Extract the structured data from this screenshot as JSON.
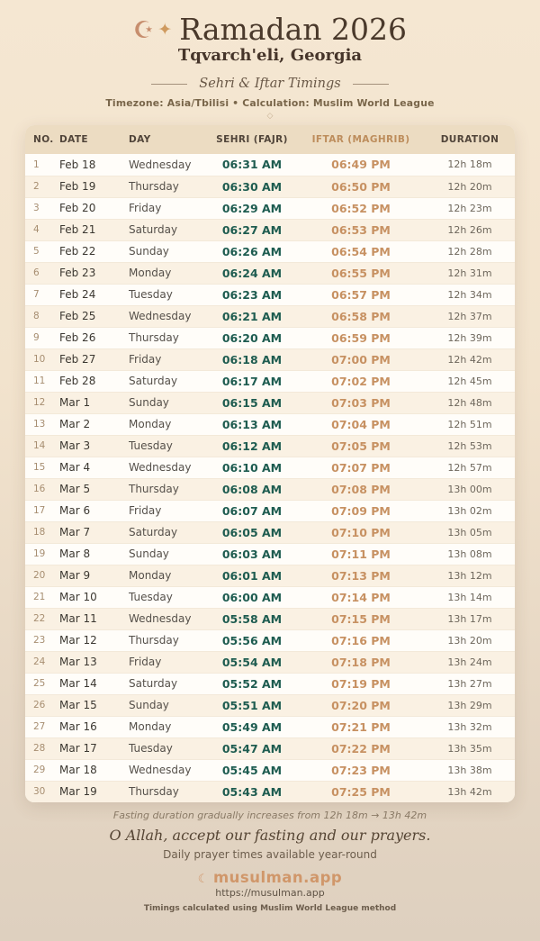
{
  "header": {
    "moon_icon": "☪",
    "sparkle_icon": "✦",
    "title": "Ramadan 2026",
    "location": "Tqvarch'eli, Georgia",
    "subtitle": "Sehri & Iftar Timings",
    "meta": "Timezone: Asia/Tbilisi • Calculation: Muslim World League",
    "divider_icon": "◇"
  },
  "table": {
    "columns": [
      "NO.",
      "DATE",
      "DAY",
      "SEHRI (FAJR)",
      "IFTAR (MAGHRIB)",
      "DURATION"
    ],
    "rows": [
      {
        "no": "1",
        "date": "Feb 18",
        "day": "Wednesday",
        "sehri": "06:31 AM",
        "iftar": "06:49 PM",
        "duration": "12h 18m"
      },
      {
        "no": "2",
        "date": "Feb 19",
        "day": "Thursday",
        "sehri": "06:30 AM",
        "iftar": "06:50 PM",
        "duration": "12h 20m"
      },
      {
        "no": "3",
        "date": "Feb 20",
        "day": "Friday",
        "sehri": "06:29 AM",
        "iftar": "06:52 PM",
        "duration": "12h 23m"
      },
      {
        "no": "4",
        "date": "Feb 21",
        "day": "Saturday",
        "sehri": "06:27 AM",
        "iftar": "06:53 PM",
        "duration": "12h 26m"
      },
      {
        "no": "5",
        "date": "Feb 22",
        "day": "Sunday",
        "sehri": "06:26 AM",
        "iftar": "06:54 PM",
        "duration": "12h 28m"
      },
      {
        "no": "6",
        "date": "Feb 23",
        "day": "Monday",
        "sehri": "06:24 AM",
        "iftar": "06:55 PM",
        "duration": "12h 31m"
      },
      {
        "no": "7",
        "date": "Feb 24",
        "day": "Tuesday",
        "sehri": "06:23 AM",
        "iftar": "06:57 PM",
        "duration": "12h 34m"
      },
      {
        "no": "8",
        "date": "Feb 25",
        "day": "Wednesday",
        "sehri": "06:21 AM",
        "iftar": "06:58 PM",
        "duration": "12h 37m"
      },
      {
        "no": "9",
        "date": "Feb 26",
        "day": "Thursday",
        "sehri": "06:20 AM",
        "iftar": "06:59 PM",
        "duration": "12h 39m"
      },
      {
        "no": "10",
        "date": "Feb 27",
        "day": "Friday",
        "sehri": "06:18 AM",
        "iftar": "07:00 PM",
        "duration": "12h 42m"
      },
      {
        "no": "11",
        "date": "Feb 28",
        "day": "Saturday",
        "sehri": "06:17 AM",
        "iftar": "07:02 PM",
        "duration": "12h 45m"
      },
      {
        "no": "12",
        "date": "Mar 1",
        "day": "Sunday",
        "sehri": "06:15 AM",
        "iftar": "07:03 PM",
        "duration": "12h 48m"
      },
      {
        "no": "13",
        "date": "Mar 2",
        "day": "Monday",
        "sehri": "06:13 AM",
        "iftar": "07:04 PM",
        "duration": "12h 51m"
      },
      {
        "no": "14",
        "date": "Mar 3",
        "day": "Tuesday",
        "sehri": "06:12 AM",
        "iftar": "07:05 PM",
        "duration": "12h 53m"
      },
      {
        "no": "15",
        "date": "Mar 4",
        "day": "Wednesday",
        "sehri": "06:10 AM",
        "iftar": "07:07 PM",
        "duration": "12h 57m"
      },
      {
        "no": "16",
        "date": "Mar 5",
        "day": "Thursday",
        "sehri": "06:08 AM",
        "iftar": "07:08 PM",
        "duration": "13h 00m"
      },
      {
        "no": "17",
        "date": "Mar 6",
        "day": "Friday",
        "sehri": "06:07 AM",
        "iftar": "07:09 PM",
        "duration": "13h 02m"
      },
      {
        "no": "18",
        "date": "Mar 7",
        "day": "Saturday",
        "sehri": "06:05 AM",
        "iftar": "07:10 PM",
        "duration": "13h 05m"
      },
      {
        "no": "19",
        "date": "Mar 8",
        "day": "Sunday",
        "sehri": "06:03 AM",
        "iftar": "07:11 PM",
        "duration": "13h 08m"
      },
      {
        "no": "20",
        "date": "Mar 9",
        "day": "Monday",
        "sehri": "06:01 AM",
        "iftar": "07:13 PM",
        "duration": "13h 12m"
      },
      {
        "no": "21",
        "date": "Mar 10",
        "day": "Tuesday",
        "sehri": "06:00 AM",
        "iftar": "07:14 PM",
        "duration": "13h 14m"
      },
      {
        "no": "22",
        "date": "Mar 11",
        "day": "Wednesday",
        "sehri": "05:58 AM",
        "iftar": "07:15 PM",
        "duration": "13h 17m"
      },
      {
        "no": "23",
        "date": "Mar 12",
        "day": "Thursday",
        "sehri": "05:56 AM",
        "iftar": "07:16 PM",
        "duration": "13h 20m"
      },
      {
        "no": "24",
        "date": "Mar 13",
        "day": "Friday",
        "sehri": "05:54 AM",
        "iftar": "07:18 PM",
        "duration": "13h 24m"
      },
      {
        "no": "25",
        "date": "Mar 14",
        "day": "Saturday",
        "sehri": "05:52 AM",
        "iftar": "07:19 PM",
        "duration": "13h 27m"
      },
      {
        "no": "26",
        "date": "Mar 15",
        "day": "Sunday",
        "sehri": "05:51 AM",
        "iftar": "07:20 PM",
        "duration": "13h 29m"
      },
      {
        "no": "27",
        "date": "Mar 16",
        "day": "Monday",
        "sehri": "05:49 AM",
        "iftar": "07:21 PM",
        "duration": "13h 32m"
      },
      {
        "no": "28",
        "date": "Mar 17",
        "day": "Tuesday",
        "sehri": "05:47 AM",
        "iftar": "07:22 PM",
        "duration": "13h 35m"
      },
      {
        "no": "29",
        "date": "Mar 18",
        "day": "Wednesday",
        "sehri": "05:45 AM",
        "iftar": "07:23 PM",
        "duration": "13h 38m"
      },
      {
        "no": "30",
        "date": "Mar 19",
        "day": "Thursday",
        "sehri": "05:43 AM",
        "iftar": "07:25 PM",
        "duration": "13h 42m"
      }
    ]
  },
  "footer": {
    "note": "Fasting duration gradually increases from 12h 18m → 13h 42m",
    "dua": "O Allah, accept our fasting and our prayers.",
    "availability": "Daily prayer times available year-round",
    "brand_icon": "☾",
    "brand": "musulman.app",
    "url": "https://musulman.app",
    "method": "Timings calculated using Muslim World League method"
  },
  "colors": {
    "sehri_time": "#1e5c50",
    "iftar_time": "#c79162",
    "iftar_header": "#bd8d5c",
    "brand_accent": "#d0976a",
    "header_row_bg": "#ecdcc2",
    "card_bg": "#fffdf9",
    "page_top_bg": "#f5e7d2",
    "page_bottom_bg": "#ded0bf"
  }
}
